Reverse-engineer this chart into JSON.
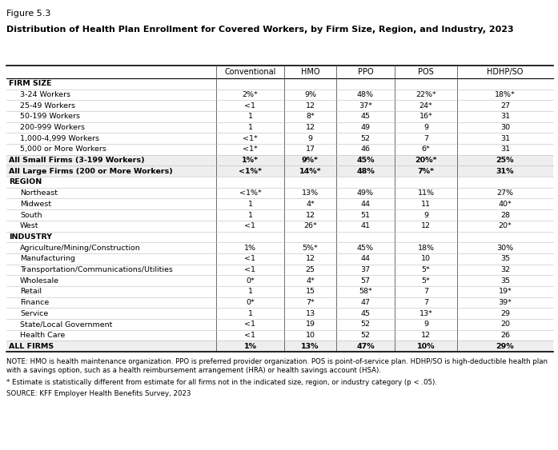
{
  "figure_label": "Figure 5.3",
  "title": "Distribution of Health Plan Enrollment for Covered Workers, by Firm Size, Region, and Industry, 2023",
  "columns": [
    "",
    "Conventional",
    "HMO",
    "PPO",
    "POS",
    "HDHP/SO"
  ],
  "rows": [
    {
      "label": "FIRM SIZE",
      "values": [
        "",
        "",
        "",
        "",
        ""
      ],
      "bold": true,
      "indent": false,
      "section_header": true
    },
    {
      "label": "3-24 Workers",
      "values": [
        "2%*",
        "9%",
        "48%",
        "22%*",
        "18%*"
      ],
      "bold": false,
      "indent": true
    },
    {
      "label": "25-49 Workers",
      "values": [
        "<1",
        "12",
        "37*",
        "24*",
        "27"
      ],
      "bold": false,
      "indent": true
    },
    {
      "label": "50-199 Workers",
      "values": [
        "1",
        "8*",
        "45",
        "16*",
        "31"
      ],
      "bold": false,
      "indent": true
    },
    {
      "label": "200-999 Workers",
      "values": [
        "1",
        "12",
        "49",
        "9",
        "30"
      ],
      "bold": false,
      "indent": true
    },
    {
      "label": "1,000-4,999 Workers",
      "values": [
        "<1*",
        "9",
        "52",
        "7",
        "31"
      ],
      "bold": false,
      "indent": true
    },
    {
      "label": "5,000 or More Workers",
      "values": [
        "<1*",
        "17",
        "46",
        "6*",
        "31"
      ],
      "bold": false,
      "indent": true
    },
    {
      "label": "All Small Firms (3-199 Workers)",
      "values": [
        "1%*",
        "9%*",
        "45%",
        "20%*",
        "25%"
      ],
      "bold": true,
      "indent": false,
      "section_header": false
    },
    {
      "label": "All Large Firms (200 or More Workers)",
      "values": [
        "<1%*",
        "14%*",
        "48%",
        "7%*",
        "31%"
      ],
      "bold": true,
      "indent": false,
      "section_header": false
    },
    {
      "label": "REGION",
      "values": [
        "",
        "",
        "",
        "",
        ""
      ],
      "bold": true,
      "indent": false,
      "section_header": true
    },
    {
      "label": "Northeast",
      "values": [
        "<1%*",
        "13%",
        "49%",
        "11%",
        "27%"
      ],
      "bold": false,
      "indent": true
    },
    {
      "label": "Midwest",
      "values": [
        "1",
        "4*",
        "44",
        "11",
        "40*"
      ],
      "bold": false,
      "indent": true
    },
    {
      "label": "South",
      "values": [
        "1",
        "12",
        "51",
        "9",
        "28"
      ],
      "bold": false,
      "indent": true
    },
    {
      "label": "West",
      "values": [
        "<1",
        "26*",
        "41",
        "12",
        "20*"
      ],
      "bold": false,
      "indent": true
    },
    {
      "label": "INDUSTRY",
      "values": [
        "",
        "",
        "",
        "",
        ""
      ],
      "bold": true,
      "indent": false,
      "section_header": true
    },
    {
      "label": "Agriculture/Mining/Construction",
      "values": [
        "1%",
        "5%*",
        "45%",
        "18%",
        "30%"
      ],
      "bold": false,
      "indent": true
    },
    {
      "label": "Manufacturing",
      "values": [
        "<1",
        "12",
        "44",
        "10",
        "35"
      ],
      "bold": false,
      "indent": true
    },
    {
      "label": "Transportation/Communications/Utilities",
      "values": [
        "<1",
        "25",
        "37",
        "5*",
        "32"
      ],
      "bold": false,
      "indent": true
    },
    {
      "label": "Wholesale",
      "values": [
        "0*",
        "4*",
        "57",
        "5*",
        "35"
      ],
      "bold": false,
      "indent": true
    },
    {
      "label": "Retail",
      "values": [
        "1",
        "15",
        "58*",
        "7",
        "19*"
      ],
      "bold": false,
      "indent": true
    },
    {
      "label": "Finance",
      "values": [
        "0*",
        "7*",
        "47",
        "7",
        "39*"
      ],
      "bold": false,
      "indent": true
    },
    {
      "label": "Service",
      "values": [
        "1",
        "13",
        "45",
        "13*",
        "29"
      ],
      "bold": false,
      "indent": true
    },
    {
      "label": "State/Local Government",
      "values": [
        "<1",
        "19",
        "52",
        "9",
        "20"
      ],
      "bold": false,
      "indent": true
    },
    {
      "label": "Health Care",
      "values": [
        "<1",
        "10",
        "52",
        "12",
        "26"
      ],
      "bold": false,
      "indent": true
    },
    {
      "label": "ALL FIRMS",
      "values": [
        "1%",
        "13%",
        "47%",
        "10%",
        "29%"
      ],
      "bold": true,
      "indent": false,
      "section_header": false
    }
  ],
  "note_line1": "NOTE: HMO is health maintenance organization. PPO is preferred provider organization. POS is point-of-service plan. HDHP/SO is high-deductible health plan",
  "note_line2": "with a savings option, such as a health reimbursement arrangement (HRA) or health savings account (HSA).",
  "asterisk_note": "* Estimate is statistically different from estimate for all firms not in the indicated size, region, or industry category (p < .05).",
  "source": "SOURCE: KFF Employer Health Benefits Survey, 2023",
  "bg_color": "#ffffff"
}
